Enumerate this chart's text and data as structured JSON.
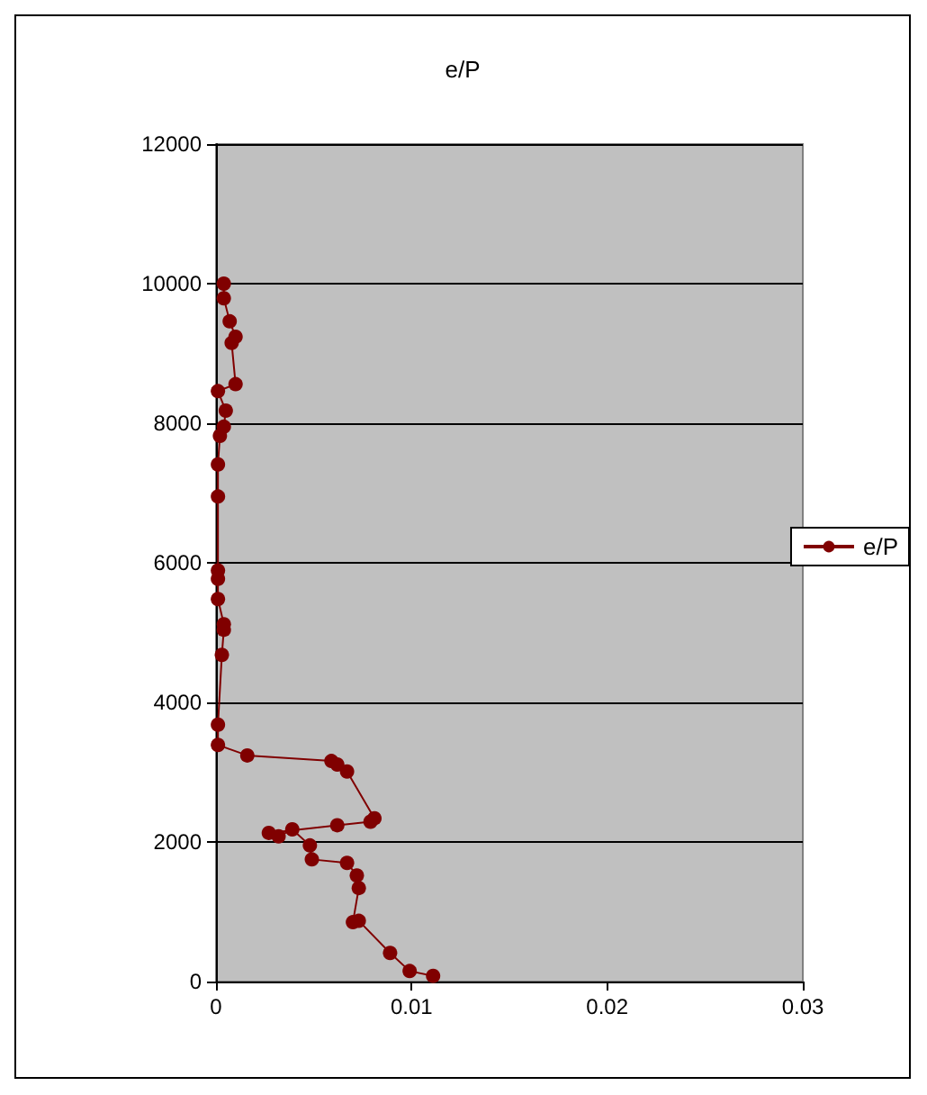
{
  "chart_data": {
    "type": "line",
    "title": "e/P",
    "x": [
      0.0111,
      0.0099,
      0.0089,
      0.0073,
      0.007,
      0.0073,
      0.0072,
      0.0067,
      0.0049,
      0.0048,
      0.0039,
      0.0032,
      0.0027,
      0.0062,
      0.0079,
      0.0081,
      0.0067,
      0.0062,
      0.0059,
      0.0016,
      0.0001,
      0.0001,
      0.0003,
      0.0004,
      0.0004,
      0.0001,
      0.0001,
      0.0001,
      0.0001,
      0.0001,
      0.0002,
      0.0004,
      0.0005,
      0.0001,
      0.001,
      0.0008,
      0.001,
      0.0007,
      0.0004,
      0.0004
    ],
    "series": [
      {
        "name": "e/P",
        "color": "#800000",
        "values": [
          80,
          150,
          410,
          870,
          850,
          1340,
          1520,
          1700,
          1750,
          1950,
          2180,
          2080,
          2130,
          2240,
          2290,
          2340,
          3010,
          3110,
          3160,
          3240,
          3390,
          3680,
          4680,
          5040,
          5120,
          5480,
          5770,
          5890,
          6950,
          7410,
          7820,
          7950,
          8180,
          8460,
          8560,
          9150,
          9240,
          9460,
          9790,
          10000
        ]
      }
    ],
    "xlim": [
      0,
      0.03
    ],
    "xticks": [
      0,
      0.01,
      0.02,
      0.03
    ],
    "ylim": [
      0,
      12000
    ],
    "yticks": [
      0,
      2000,
      4000,
      6000,
      8000,
      10000,
      12000
    ],
    "grid": "y",
    "legend": "right",
    "marker": "circle",
    "line_style": "solid"
  }
}
